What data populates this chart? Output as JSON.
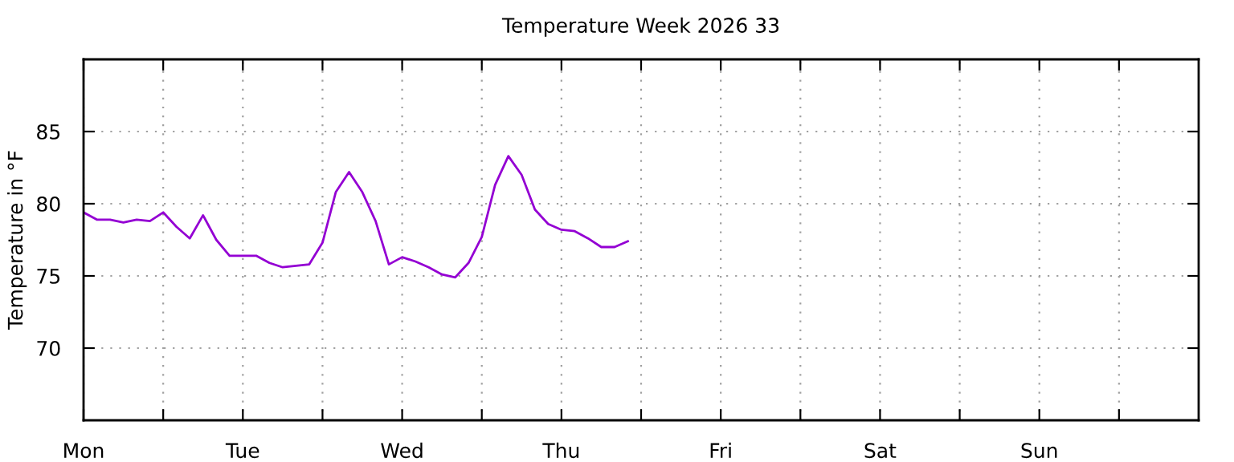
{
  "chart_data": {
    "type": "line",
    "title": "Temperature Week 2026 33",
    "ylabel": "Temperature in °F",
    "categories": [
      "Mon",
      null,
      null,
      null,
      null,
      null,
      null,
      null,
      null,
      null,
      null,
      null,
      "Tue",
      null,
      null,
      null,
      null,
      null,
      null,
      null,
      null,
      null,
      null,
      null,
      "Wed",
      null,
      null,
      null,
      null,
      null,
      null,
      null,
      null,
      null,
      null,
      null,
      "Thu",
      null,
      null,
      null,
      null,
      null,
      null,
      null,
      null,
      null,
      null,
      null,
      "Fri",
      null,
      null,
      null,
      null,
      null,
      null,
      null,
      null,
      null,
      null,
      null,
      "Sat",
      null,
      null,
      null,
      null,
      null,
      null,
      null,
      null,
      null,
      null,
      null,
      "Sun",
      null,
      null,
      null,
      null,
      null,
      null,
      null,
      null,
      null,
      null,
      null
    ],
    "ylim": [
      65,
      90
    ],
    "yticks": [
      70,
      75,
      80,
      85
    ],
    "grid": true,
    "marker": "none",
    "line_style": "solid",
    "series": [
      {
        "color": "#9400d3",
        "values": [
          79.4,
          78.9,
          78.9,
          78.7,
          78.9,
          78.8,
          79.4,
          78.4,
          77.6,
          79.2,
          77.5,
          76.4,
          76.4,
          76.4,
          75.9,
          75.6,
          75.7,
          75.8,
          77.3,
          80.8,
          82.2,
          80.8,
          78.8,
          75.8,
          76.3,
          76.0,
          75.6,
          75.1,
          74.9,
          75.9,
          77.7,
          81.3,
          83.3,
          82.0,
          79.6,
          78.6,
          78.2,
          78.1,
          77.6,
          77.0,
          77.0,
          77.4,
          null,
          null,
          null,
          null,
          null,
          null,
          null,
          null,
          null,
          null,
          null,
          null,
          null,
          null,
          null,
          null,
          null,
          null,
          null,
          null,
          null,
          null,
          null,
          null,
          null,
          null,
          null,
          null,
          null,
          null,
          null,
          null,
          null,
          null,
          null,
          null,
          null,
          null,
          null,
          null,
          null,
          null
        ]
      }
    ]
  }
}
